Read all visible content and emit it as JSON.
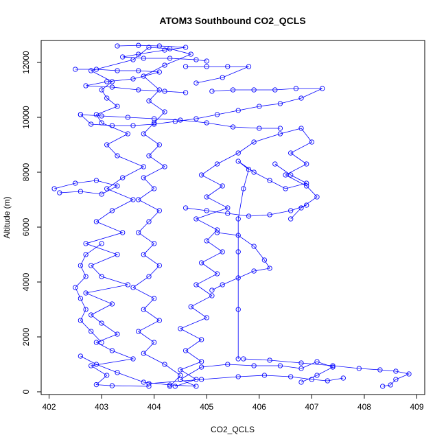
{
  "chart_data": {
    "type": "scatter",
    "title": "ATOM3 Southbound CO2_QCLS",
    "xlabel": "CO2_QCLS",
    "ylabel": "Altitude (m)",
    "xlim": [
      401.85,
      409.15
    ],
    "ylim": [
      -100,
      12800
    ],
    "xticks": [
      402,
      403,
      404,
      405,
      406,
      407,
      408,
      409
    ],
    "yticks": [
      0,
      2000,
      4000,
      6000,
      8000,
      10000,
      12000
    ],
    "marker": "open-circle",
    "connected": true,
    "grid": false,
    "color": "#0000ff",
    "series": [
      {
        "points": [
          [
            403.9,
            200
          ],
          [
            403.2,
            220
          ],
          [
            402.9,
            260
          ],
          [
            403.1,
            600
          ],
          [
            402.8,
            950
          ],
          [
            403.6,
            1200
          ],
          [
            403.2,
            1500
          ],
          [
            402.9,
            1800
          ],
          [
            403.3,
            2100
          ],
          [
            403.0,
            2500
          ],
          [
            402.8,
            2800
          ],
          [
            403.2,
            3200
          ],
          [
            402.7,
            3600
          ],
          [
            403.5,
            3900
          ],
          [
            403.0,
            4200
          ],
          [
            402.8,
            4600
          ],
          [
            403.3,
            5000
          ],
          [
            402.7,
            5400
          ],
          [
            403.4,
            5800
          ],
          [
            402.9,
            6200
          ],
          [
            403.2,
            6600
          ],
          [
            403.6,
            7000
          ],
          [
            403.1,
            7400
          ],
          [
            403.4,
            7800
          ],
          [
            403.8,
            8200
          ],
          [
            403.3,
            8600
          ],
          [
            403.1,
            9000
          ],
          [
            403.5,
            9400
          ],
          [
            403.0,
            9800
          ],
          [
            402.9,
            10100
          ],
          [
            403.3,
            10400
          ],
          [
            403.1,
            10700
          ],
          [
            403.0,
            11000
          ],
          [
            403.2,
            11300
          ],
          [
            402.8,
            11700
          ],
          [
            403.6,
            12100
          ],
          [
            403.9,
            12550
          ],
          [
            404.3,
            12500
          ],
          [
            404.7,
            12300
          ],
          [
            404.2,
            11900
          ],
          [
            403.8,
            11500
          ],
          [
            404.1,
            11000
          ],
          [
            403.9,
            10600
          ],
          [
            404.2,
            10200
          ],
          [
            404.0,
            9800
          ],
          [
            403.8,
            9400
          ],
          [
            404.1,
            9000
          ],
          [
            403.9,
            8600
          ],
          [
            404.2,
            8200
          ],
          [
            403.8,
            7800
          ],
          [
            404.0,
            7400
          ],
          [
            403.7,
            7000
          ],
          [
            404.1,
            6600
          ],
          [
            403.9,
            6200
          ],
          [
            403.7,
            5800
          ],
          [
            404.0,
            5400
          ],
          [
            403.8,
            5000
          ],
          [
            404.1,
            4600
          ],
          [
            403.9,
            4200
          ],
          [
            403.6,
            3800
          ],
          [
            404.0,
            3400
          ],
          [
            403.8,
            3000
          ],
          [
            404.1,
            2600
          ],
          [
            403.7,
            2200
          ],
          [
            404.0,
            1800
          ],
          [
            403.8,
            1400
          ],
          [
            404.2,
            1000
          ],
          [
            404.5,
            600
          ],
          [
            404.3,
            200
          ]
        ]
      },
      {
        "points": [
          [
            404.4,
            200
          ],
          [
            404.8,
            450
          ],
          [
            404.5,
            800
          ],
          [
            404.9,
            1100
          ],
          [
            404.6,
            1500
          ],
          [
            404.9,
            1900
          ],
          [
            404.5,
            2300
          ],
          [
            405.0,
            2700
          ],
          [
            404.7,
            3100
          ],
          [
            405.1,
            3500
          ],
          [
            404.8,
            3900
          ],
          [
            405.2,
            4300
          ],
          [
            404.9,
            4700
          ],
          [
            405.3,
            5100
          ],
          [
            405.0,
            5500
          ],
          [
            405.2,
            5900
          ],
          [
            404.8,
            6300
          ],
          [
            405.4,
            6700
          ],
          [
            405.0,
            7100
          ],
          [
            405.3,
            7500
          ],
          [
            404.9,
            7900
          ],
          [
            405.2,
            8300
          ],
          [
            405.6,
            8700
          ],
          [
            405.9,
            9100
          ],
          [
            406.4,
            9400
          ],
          [
            406.8,
            9600
          ],
          [
            407.0,
            9100
          ],
          [
            406.6,
            8700
          ],
          [
            406.9,
            8300
          ],
          [
            406.5,
            7900
          ],
          [
            406.9,
            7500
          ],
          [
            407.1,
            7100
          ],
          [
            406.8,
            6700
          ],
          [
            406.6,
            6300
          ]
        ]
      },
      {
        "points": [
          [
            405.1,
            10950
          ],
          [
            405.5,
            11000
          ],
          [
            405.9,
            11000
          ],
          [
            406.3,
            11000
          ],
          [
            406.7,
            11050
          ],
          [
            407.2,
            11050
          ],
          [
            406.8,
            10700
          ],
          [
            406.4,
            10500
          ],
          [
            406.0,
            10400
          ],
          [
            405.6,
            10250
          ],
          [
            405.2,
            10100
          ],
          [
            404.8,
            9950
          ],
          [
            404.4,
            9850
          ],
          [
            404.0,
            9750
          ],
          [
            403.6,
            9700
          ],
          [
            403.2,
            9700
          ],
          [
            402.8,
            9750
          ],
          [
            402.6,
            10100
          ]
        ]
      },
      {
        "points": [
          [
            404.6,
            11850
          ],
          [
            405.0,
            11850
          ],
          [
            405.4,
            11850
          ],
          [
            405.8,
            11850
          ],
          [
            405.3,
            11450
          ],
          [
            404.8,
            11250
          ]
        ]
      },
      {
        "points": [
          [
            403.3,
            12600
          ],
          [
            403.7,
            12620
          ],
          [
            404.1,
            12600
          ],
          [
            404.6,
            12550
          ],
          [
            404.2,
            12450
          ],
          [
            403.7,
            12300
          ],
          [
            403.4,
            12200
          ],
          [
            403.8,
            12150
          ],
          [
            404.3,
            12150
          ],
          [
            404.8,
            12100
          ],
          [
            405.0,
            12050
          ]
        ]
      },
      {
        "points": [
          [
            402.5,
            11750
          ],
          [
            402.9,
            11750
          ],
          [
            403.3,
            11700
          ],
          [
            403.7,
            11700
          ],
          [
            404.1,
            11650
          ],
          [
            403.6,
            11400
          ],
          [
            403.1,
            11300
          ],
          [
            402.7,
            11150
          ],
          [
            403.2,
            11100
          ],
          [
            403.7,
            11000
          ],
          [
            404.2,
            10950
          ],
          [
            404.6,
            10900
          ]
        ]
      },
      {
        "points": [
          [
            402.6,
            10100
          ],
          [
            403.0,
            10050
          ],
          [
            403.5,
            10000
          ],
          [
            404.0,
            9950
          ],
          [
            404.5,
            9900
          ],
          [
            405.0,
            9800
          ],
          [
            405.5,
            9650
          ],
          [
            406.0,
            9600
          ],
          [
            406.4,
            9600
          ]
        ]
      },
      {
        "points": [
          [
            402.1,
            7400
          ],
          [
            402.5,
            7600
          ],
          [
            402.9,
            7700
          ],
          [
            403.3,
            7500
          ],
          [
            403.0,
            7200
          ],
          [
            402.6,
            7300
          ],
          [
            402.2,
            7250
          ]
        ]
      },
      {
        "points": [
          [
            402.6,
            1300
          ],
          [
            402.9,
            1000
          ],
          [
            403.3,
            700
          ],
          [
            403.8,
            350
          ],
          [
            404.3,
            250
          ],
          [
            404.8,
            200
          ],
          [
            404.5,
            450
          ],
          [
            404.9,
            900
          ],
          [
            405.4,
            1000
          ],
          [
            405.9,
            950
          ],
          [
            406.4,
            950
          ],
          [
            406.8,
            850
          ],
          [
            407.1,
            1100
          ],
          [
            407.4,
            900
          ],
          [
            407.1,
            600
          ],
          [
            406.8,
            350
          ]
        ]
      },
      {
        "points": [
          [
            405.7,
            1200
          ],
          [
            406.2,
            1150
          ],
          [
            406.8,
            1050
          ],
          [
            407.4,
            950
          ],
          [
            407.9,
            850
          ],
          [
            408.3,
            800
          ],
          [
            408.6,
            750
          ],
          [
            408.85,
            650
          ],
          [
            408.6,
            450
          ],
          [
            408.5,
            250
          ],
          [
            408.35,
            200
          ]
        ]
      },
      {
        "points": [
          [
            403.9,
            300
          ],
          [
            404.9,
            450
          ],
          [
            405.6,
            550
          ],
          [
            406.1,
            600
          ],
          [
            406.6,
            550
          ],
          [
            407.0,
            450
          ],
          [
            407.3,
            400
          ],
          [
            407.6,
            500
          ]
        ]
      },
      {
        "points": [
          [
            405.6,
            1200
          ],
          [
            405.6,
            3000
          ],
          [
            405.6,
            5100
          ],
          [
            405.6,
            6300
          ],
          [
            405.7,
            7400
          ],
          [
            405.8,
            8100
          ],
          [
            405.6,
            8400
          ],
          [
            405.9,
            8000
          ],
          [
            406.2,
            7700
          ],
          [
            406.5,
            7400
          ],
          [
            406.9,
            7600
          ],
          [
            406.6,
            7900
          ],
          [
            406.3,
            8300
          ]
        ]
      },
      {
        "points": [
          [
            403.0,
            5400
          ],
          [
            402.7,
            5000
          ],
          [
            402.6,
            4600
          ],
          [
            402.7,
            4200
          ],
          [
            402.5,
            3800
          ],
          [
            402.6,
            3400
          ],
          [
            402.7,
            3000
          ],
          [
            402.6,
            2600
          ],
          [
            402.8,
            2200
          ],
          [
            403.0,
            1800
          ]
        ]
      },
      {
        "points": [
          [
            405.2,
            5800
          ],
          [
            405.6,
            5700
          ],
          [
            405.9,
            5300
          ],
          [
            406.1,
            4800
          ],
          [
            406.2,
            4500
          ],
          [
            405.9,
            4400
          ],
          [
            405.6,
            4150
          ],
          [
            405.3,
            3900
          ],
          [
            405.1,
            3700
          ]
        ]
      },
      {
        "points": [
          [
            404.6,
            6700
          ],
          [
            405.0,
            6600
          ],
          [
            405.4,
            6500
          ],
          [
            405.8,
            6400
          ],
          [
            406.2,
            6450
          ],
          [
            406.6,
            6600
          ],
          [
            406.9,
            6800
          ]
        ]
      }
    ]
  }
}
